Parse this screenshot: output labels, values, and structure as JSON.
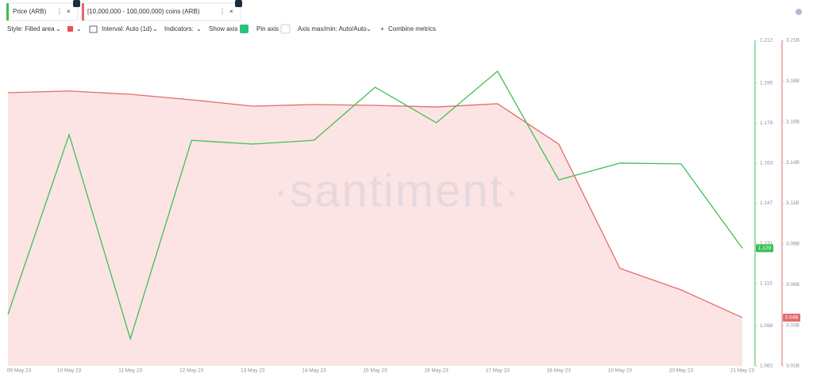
{
  "chips": [
    {
      "label": "Price (ARB)",
      "color": "#3cc155"
    },
    {
      "label": "[10,000,000 - 100,000,000) coins (ARB)",
      "color": "#e56a6a"
    }
  ],
  "toolbar": {
    "style": "Style: Filled area",
    "interval": "Interval: Auto (1d)",
    "indicators": "Indicators:",
    "show_axis": "Show axis",
    "pin_axis": "Pin axis",
    "axis_minmax": "Axis max/min: Auto/Auto",
    "combine": "Combine metrics"
  },
  "watermark": "·santiment·",
  "chart_data": {
    "type": "line",
    "categories": [
      "09 May 23",
      "10 May 23",
      "11 May 23",
      "12 May 23",
      "13 May 23",
      "14 May 23",
      "15 May 23",
      "16 May 23",
      "17 May 23",
      "18 May 23",
      "19 May 23",
      "20 May 23",
      "21 May 23"
    ],
    "series": [
      {
        "name": "Price (ARB)",
        "color": "#3cc155",
        "axis": "y",
        "values": [
          1.1026,
          1.1744,
          1.0928,
          1.1721,
          1.1706,
          1.1721,
          1.1933,
          1.1791,
          1.1997,
          1.1563,
          1.163,
          1.1627,
          1.129
        ]
      },
      {
        "name": "[10,000,000 - 100,000,000) coins (ARB)",
        "color": "#e56a6a",
        "fill": "#fde4e4",
        "axis": "y2",
        "values": [
          3177900000,
          3178900000,
          3176900000,
          3173500000,
          3169600000,
          3170600000,
          3170100000,
          3169100000,
          3171100000,
          3146300000,
          3069900000,
          3056700000,
          3039700000
        ],
        "value_labels": [
          null,
          null,
          null,
          null,
          null,
          null,
          null,
          null,
          null,
          null,
          null,
          null,
          "3.04B"
        ]
      }
    ],
    "ylim": [
      1.082,
      1.212
    ],
    "yticks": [
      1.082,
      1.098,
      1.115,
      1.131,
      1.147,
      1.163,
      1.179,
      1.195,
      1.212
    ],
    "y2lim": [
      3010000000,
      3210000000
    ],
    "y2ticks": [
      {
        "value": 3010000000,
        "label": "3.01B"
      },
      {
        "value": 3035000000,
        "label": "3.03B"
      },
      {
        "value": 3060000000,
        "label": "3.06B"
      },
      {
        "value": 3085000000,
        "label": "3.08B"
      },
      {
        "value": 3110000000,
        "label": "3.11B"
      },
      {
        "value": 3135000000,
        "label": "3.14B"
      },
      {
        "value": 3160000000,
        "label": "3.16B"
      },
      {
        "value": 3185000000,
        "label": "3.18B"
      },
      {
        "value": 3210000000,
        "label": "3.21B"
      }
    ],
    "grid": false
  }
}
